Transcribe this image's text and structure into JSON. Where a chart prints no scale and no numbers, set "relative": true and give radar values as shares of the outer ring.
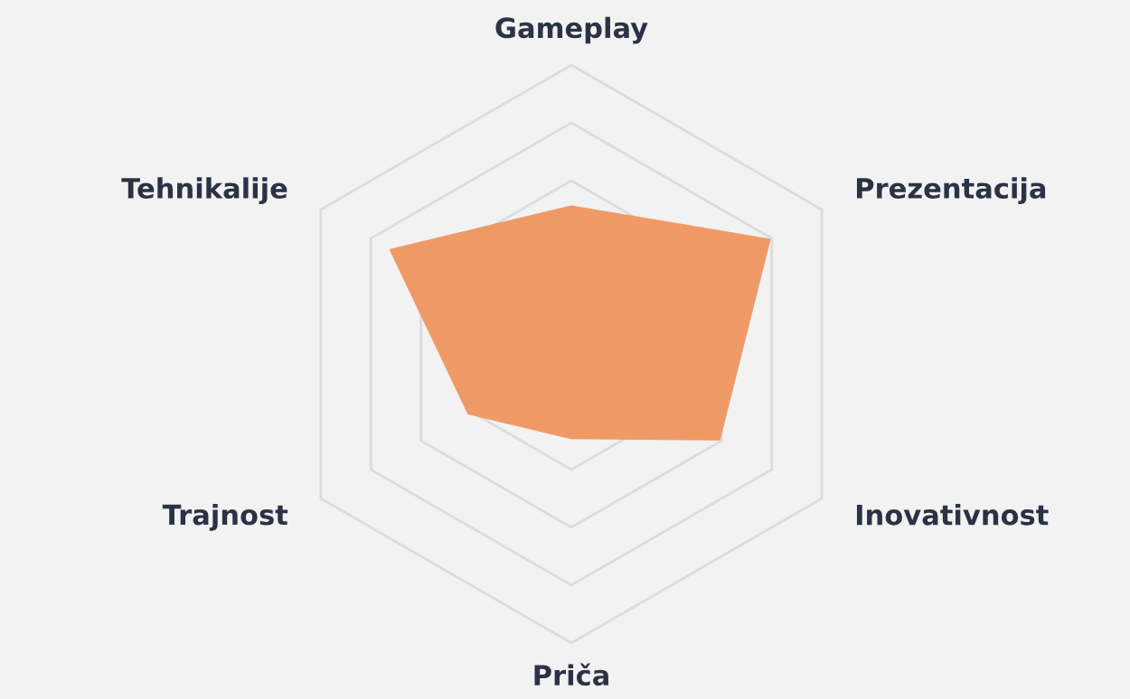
{
  "chart_data": {
    "type": "radar",
    "relative": true,
    "grid": true,
    "categories": [
      "Gameplay",
      "Prezentacija",
      "Inovativnost",
      "Priča",
      "Trajnost",
      "Tehnikalije"
    ],
    "series": [
      {
        "color": "#ef9a66",
        "values": [
          0.51,
          0.79,
          0.59,
          0.29,
          0.41,
          0.72
        ]
      }
    ]
  }
}
